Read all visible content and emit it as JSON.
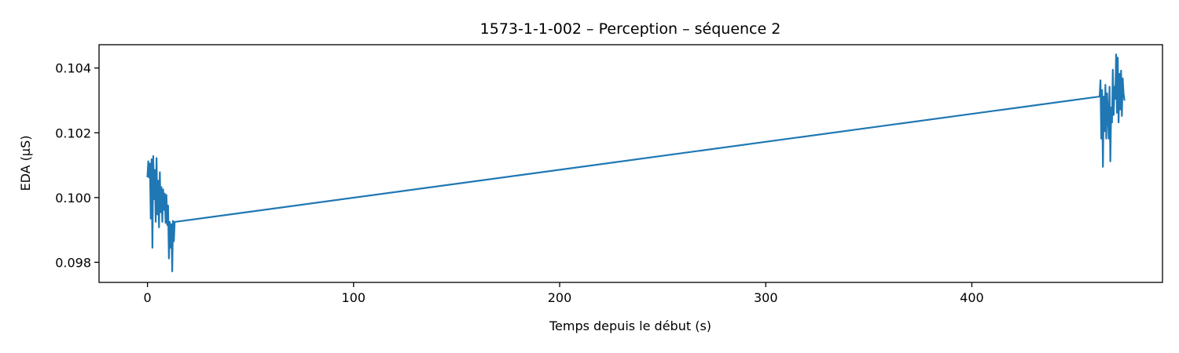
{
  "chart_data": {
    "type": "line",
    "title": "1573-1-1-002 – Perception – séquence 2",
    "xlabel": "Temps depuis le début (s)",
    "ylabel": "EDA (µS)",
    "xlim": [
      -23.5,
      492.5
    ],
    "ylim": [
      0.09738,
      0.10472
    ],
    "xticks": [
      0,
      100,
      200,
      300,
      400
    ],
    "xtick_labels": [
      "0",
      "100",
      "200",
      "300",
      "400"
    ],
    "yticks": [
      0.098,
      0.1,
      0.102,
      0.104
    ],
    "ytick_labels": [
      "0.098",
      "0.100",
      "0.102",
      "0.104"
    ],
    "grid": false,
    "legend": "none",
    "series": [
      {
        "color": "#1f77b4",
        "x": [
          0,
          0.4,
          0.8,
          1.2,
          1.6,
          2.0,
          2.4,
          2.8,
          3.2,
          3.6,
          4.0,
          4.4,
          4.8,
          5.2,
          5.6,
          6.0,
          6.4,
          6.8,
          7.2,
          7.6,
          8.0,
          8.4,
          8.8,
          9.2,
          9.6,
          10.0,
          10.4,
          10.8,
          11.2,
          11.6,
          12.0,
          12.4,
          12.8,
          13.2,
          13.5,
          462.0,
          462.4,
          462.8,
          463.2,
          463.6,
          464.0,
          464.4,
          464.8,
          465.2,
          465.6,
          466.0,
          466.4,
          466.8,
          467.2,
          467.6,
          468.0,
          468.4,
          468.8,
          469.2,
          469.6,
          470.0,
          470.4,
          470.8,
          471.2,
          471.6,
          472.0,
          472.4,
          472.8,
          473.2,
          473.6,
          474.0
        ],
        "y": [
          0.10065,
          0.10112,
          0.10062,
          0.10105,
          0.09935,
          0.10118,
          0.09845,
          0.10128,
          0.09995,
          0.10085,
          0.09925,
          0.10122,
          0.09948,
          0.10052,
          0.09908,
          0.10078,
          0.09955,
          0.10032,
          0.09925,
          0.10025,
          0.09962,
          0.10012,
          0.09922,
          0.10008,
          0.09915,
          0.09975,
          0.09812,
          0.09925,
          0.09845,
          0.09918,
          0.09772,
          0.09928,
          0.09865,
          0.09925,
          0.09925,
          0.10312,
          0.10362,
          0.10182,
          0.10332,
          0.10095,
          0.10312,
          0.10205,
          0.10348,
          0.10182,
          0.10322,
          0.10262,
          0.10182,
          0.10342,
          0.10112,
          0.10278,
          0.10232,
          0.10395,
          0.10255,
          0.10342,
          0.10305,
          0.10442,
          0.10262,
          0.10432,
          0.10232,
          0.10382,
          0.10272,
          0.10392,
          0.10252,
          0.10368,
          0.10322,
          0.10302
        ]
      }
    ]
  }
}
